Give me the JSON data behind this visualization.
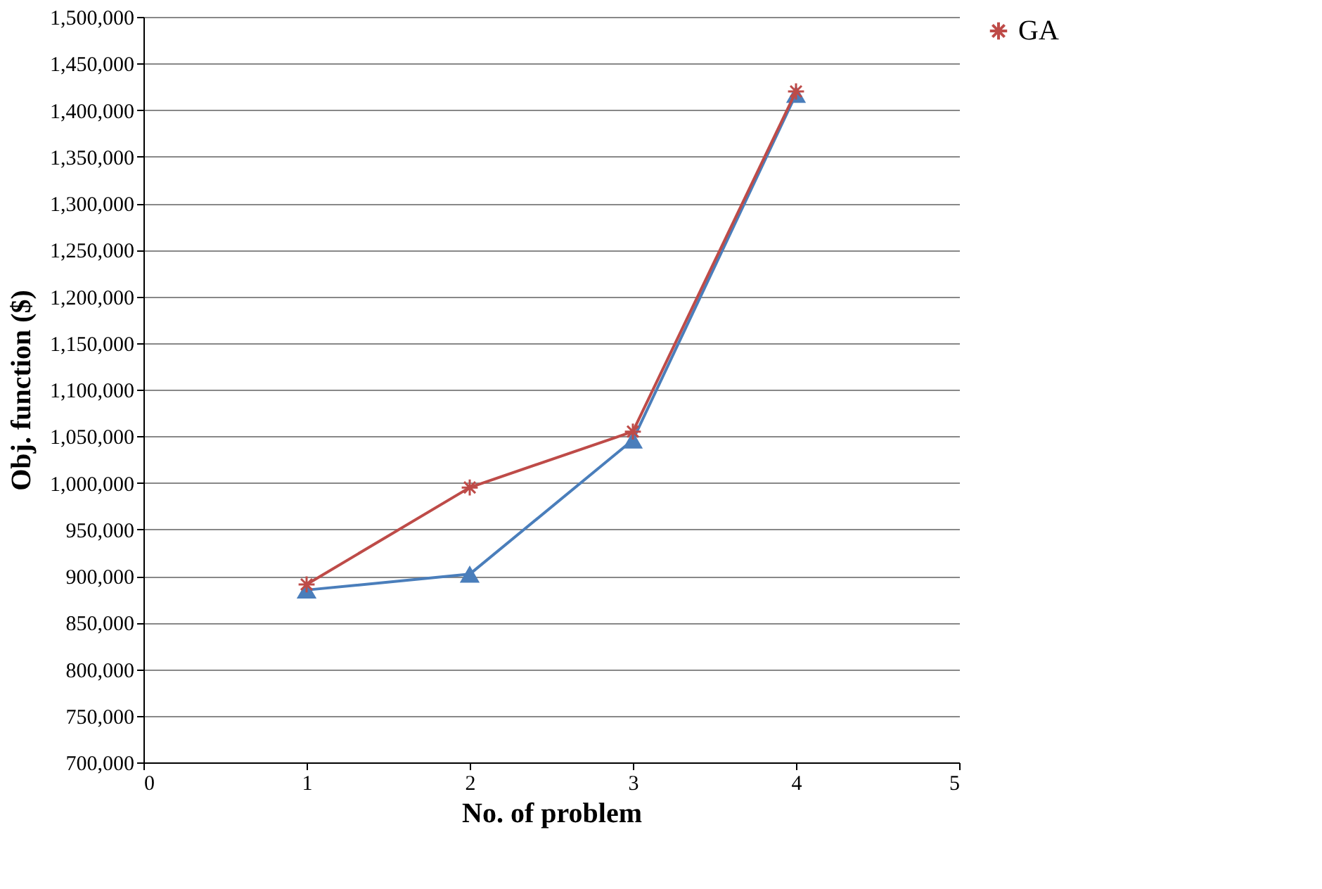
{
  "chart_data": {
    "type": "line",
    "xlabel": "No. of problem",
    "ylabel": "Obj. function ($)",
    "x": [
      1,
      2,
      3,
      4
    ],
    "series": [
      {
        "color": "#4a7ebb",
        "marker": "triangle",
        "values": [
          885000,
          902000,
          1046000,
          1417000
        ]
      },
      {
        "name": "GA",
        "color": "#be4b48",
        "marker": "cross",
        "values": [
          891000,
          995000,
          1055000,
          1420000
        ]
      }
    ],
    "xlim": [
      0,
      5
    ],
    "xticks": [
      0,
      1,
      2,
      3,
      4,
      5
    ],
    "ylim": [
      700000,
      1500000
    ],
    "yticks": [
      {
        "value": 700000,
        "label": "700,000"
      },
      {
        "value": 750000,
        "label": "750,000"
      },
      {
        "value": 800000,
        "label": "800,000"
      },
      {
        "value": 850000,
        "label": "850,000"
      },
      {
        "value": 900000,
        "label": "900,000"
      },
      {
        "value": 950000,
        "label": "950,000"
      },
      {
        "value": 1000000,
        "label": "1,000,000"
      },
      {
        "value": 1050000,
        "label": "1,050,000"
      },
      {
        "value": 1100000,
        "label": "1,100,000"
      },
      {
        "value": 1150000,
        "label": "1,150,000"
      },
      {
        "value": 1200000,
        "label": "1,200,000"
      },
      {
        "value": 1250000,
        "label": "1,250,000"
      },
      {
        "value": 1300000,
        "label": "1,300,000"
      },
      {
        "value": 1350000,
        "label": "1,350,000"
      },
      {
        "value": 1400000,
        "label": "1,400,000"
      },
      {
        "value": 1450000,
        "label": "1,450,000"
      },
      {
        "value": 1500000,
        "label": "1,500,000"
      }
    ],
    "grid": "y",
    "legend": "right",
    "line_style": "solid"
  }
}
